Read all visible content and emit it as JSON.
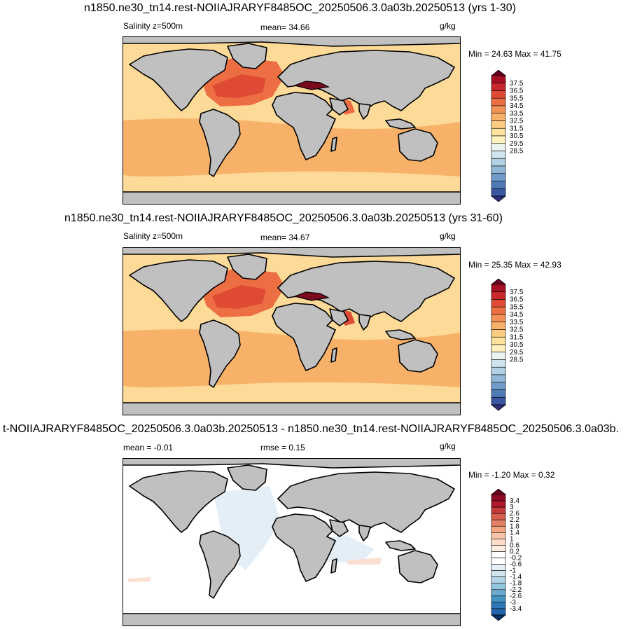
{
  "panels": [
    {
      "title": "n1850.ne30_tn14.rest-NOIIAJRARYF8485OC_20250506.3.0a03b.20250513 (yrs 1-30)",
      "left_label": "Salinity z=500m",
      "center_label": "mean=  34.66",
      "units": "g/kg",
      "minmax": "Min =  24.63 Max =  41.75"
    },
    {
      "title": "n1850.ne30_tn14.rest-NOIIAJRARYF8485OC_20250506.3.0a03b.20250513 (yrs 31-60)",
      "left_label": "Salinity z=500m",
      "center_label": "mean=  34.67",
      "units": "g/kg",
      "minmax": "Min =  25.35 Max =  42.93"
    },
    {
      "title": "t-NOIIAJRARYF8485OC_20250506.3.0a03b.20250513 - n1850.ne30_tn14.rest-NOIIAJRARYF8485OC_20250506.3.0a03b.",
      "left_label": "mean =  -0.01",
      "center_label": "rmse =   0.15",
      "units": "g/kg",
      "minmax": "Min =  -1.20 Max =   0.32"
    }
  ],
  "colorbars": {
    "salinity": {
      "labels": [
        "37.5",
        "36.5",
        "35.5",
        "34.5",
        "33.5",
        "32.5",
        "31.5",
        "30.5",
        "29.5",
        "28.5"
      ],
      "colors": [
        "#67001f",
        "#a50f24",
        "#c9272c",
        "#df4a35",
        "#ed6e42",
        "#f39256",
        "#f8b169",
        "#fbcc82",
        "#fde29e",
        "#fdf1bd",
        "#eaf3f0",
        "#cfe4ec",
        "#b0d0e3",
        "#90b8d6",
        "#6f9bc8",
        "#4f7bb6",
        "#3b56a1",
        "#2c2f7a"
      ]
    },
    "difference": {
      "labels": [
        "3.4",
        "3",
        "2.6",
        "2.2",
        "1.8",
        "1.4",
        "1",
        "0.6",
        "0.2",
        "-0.2",
        "-0.6",
        "-1",
        "-1.4",
        "-1.8",
        "-2.2",
        "-2.6",
        "-3",
        "-3.4"
      ],
      "colors": [
        "#67001f",
        "#8e0b23",
        "#b2182b",
        "#c53a3a",
        "#d6604d",
        "#e48066",
        "#f4a582",
        "#f8c3a6",
        "#fddbc7",
        "#fdeee4",
        "#ffffff",
        "#ffffff",
        "#e6eff7",
        "#d1e5f0",
        "#b3d4e7",
        "#92c5de",
        "#6aaad1",
        "#4393c3",
        "#2e78b5",
        "#2166ac",
        "#053061"
      ]
    }
  },
  "map_colors": {
    "land": "#c0c0c0",
    "coast": "#000000",
    "base_salinity": "#fdda97",
    "high_salinity": "#f8b169",
    "atlantic": "#ed6e42",
    "atlantic_core": "#df4a35",
    "mediterranean": "#7a0a1c",
    "diff_base": "#ffffff",
    "diff_negative": "#e4eef7",
    "diff_positive": "#fbe0d2"
  }
}
